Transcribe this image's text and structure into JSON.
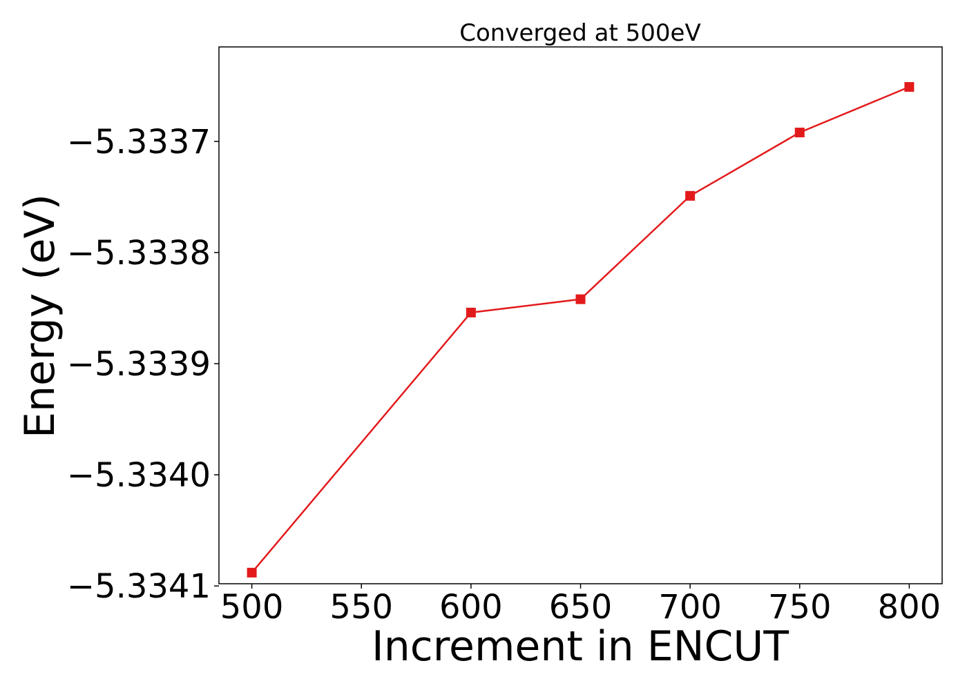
{
  "chart_data": {
    "type": "line",
    "title": "Converged at 500eV",
    "xlabel": "Increment in ENCUT",
    "ylabel": "Energy (eV)",
    "x": [
      500,
      600,
      650,
      700,
      750,
      800
    ],
    "series": [
      {
        "values": [
          -5.334088,
          -5.333854,
          -5.333842,
          -5.333749,
          -5.333692,
          -5.333651
        ],
        "color": "#e31a1c",
        "marker": "square"
      }
    ],
    "xlim": [
      485,
      815
    ],
    "ylim": [
      -5.334098,
      -5.333615
    ],
    "xticks": [
      500,
      550,
      600,
      650,
      700,
      750,
      800
    ],
    "xtick_labels": [
      "500",
      "550",
      "600",
      "650",
      "700",
      "750",
      "800"
    ],
    "yticks": [
      -5.3341,
      -5.334,
      -5.3339,
      -5.3338,
      -5.3337
    ],
    "ytick_labels": [
      "−5.3341",
      "−5.3340",
      "−5.3339",
      "−5.3338",
      "−5.3337"
    ],
    "grid": false,
    "legend": "none"
  }
}
